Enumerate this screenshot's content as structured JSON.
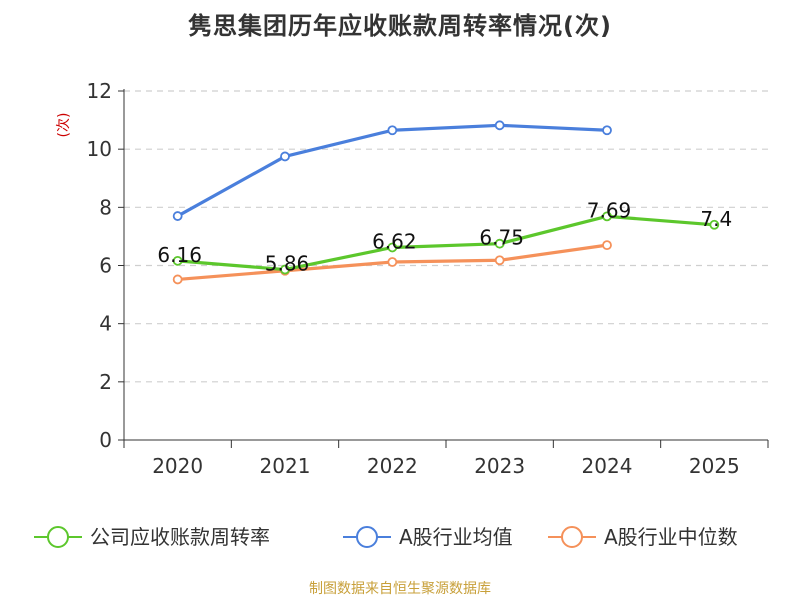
{
  "chart_data": {
    "type": "line",
    "title": "隽思集团历年应收账款周转率情况(次)",
    "ylabel": "(次)",
    "xlabel": "",
    "categories": [
      "2020",
      "2021",
      "2022",
      "2023",
      "2024",
      "2025"
    ],
    "ylim": [
      0,
      12
    ],
    "yticks": [
      0,
      2,
      4,
      6,
      8,
      10,
      12
    ],
    "grid": true,
    "legend_position": "bottom",
    "series": [
      {
        "name": "公司应收账款周转率",
        "color": "#5cc72c",
        "values": [
          6.16,
          5.86,
          6.62,
          6.75,
          7.69,
          7.4
        ],
        "labels": [
          "6.16",
          "5.86",
          "6.62",
          "6.75",
          "7.69",
          "7.4"
        ],
        "show_labels": true
      },
      {
        "name": "A股行业均值",
        "color": "#4a7fdc",
        "values": [
          7.7,
          9.75,
          10.65,
          10.82,
          10.65,
          null
        ],
        "show_labels": false
      },
      {
        "name": "A股行业中位数",
        "color": "#f5915a",
        "values": [
          5.52,
          5.82,
          6.12,
          6.18,
          6.7,
          null
        ],
        "show_labels": false
      }
    ]
  },
  "footer": {
    "source": "制图数据来自恒生聚源数据库"
  }
}
